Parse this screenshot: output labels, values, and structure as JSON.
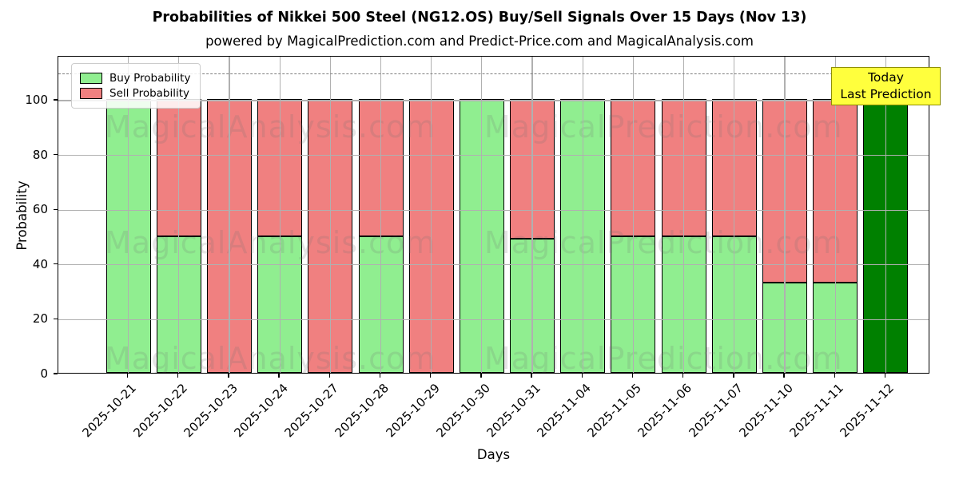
{
  "title": "Probabilities of Nikkei 500 Steel (NG12.OS) Buy/Sell Signals Over 15 Days (Nov 13)",
  "subtitle": "powered by MagicalPrediction.com and Predict-Price.com and MagicalAnalysis.com",
  "legend": {
    "items": [
      {
        "label": "Buy Probability",
        "color": "#90EE90"
      },
      {
        "label": "Sell Probability",
        "color": "#F08080"
      }
    ]
  },
  "annotation_box": {
    "line1": "Today",
    "line2": "Last Prediction",
    "bg": "#FFFF3D",
    "border": "#8F8F00"
  },
  "axes": {
    "xlabel": "Days",
    "ylabel": "Probability",
    "yticks": [
      "0",
      "20",
      "40",
      "60",
      "80",
      "100"
    ],
    "ylim": [
      0,
      116
    ],
    "dashed_guide_y": 110,
    "grid": true
  },
  "watermarks": {
    "left": "MagicalAnalysis.com",
    "right": "MagicalPrediction.com"
  },
  "colors": {
    "buy": "#90EE90",
    "sell": "#F08080",
    "last_bar": "#008000",
    "grid": "#B0B0B0",
    "dashed_guide": "#7F7F7F",
    "bar_edge": "#000000",
    "annotation_bg": "#FFFF3D"
  },
  "chart_data": {
    "type": "bar",
    "stacked": true,
    "title": "Probabilities of Nikkei 500 Steel (NG12.OS) Buy/Sell Signals Over 15 Days (Nov 13)",
    "xlabel": "Days",
    "ylabel": "Probability",
    "ylim": [
      0,
      116
    ],
    "grid": true,
    "legend_position": "upper left",
    "categories": [
      "2025-10-21",
      "2025-10-22",
      "2025-10-23",
      "2025-10-24",
      "2025-10-27",
      "2025-10-28",
      "2025-10-29",
      "2025-10-30",
      "2025-10-31",
      "2025-11-04",
      "2025-11-05",
      "2025-11-06",
      "2025-11-07",
      "2025-11-10",
      "2025-11-11",
      "2025-11-12"
    ],
    "series": [
      {
        "name": "Buy Probability",
        "color": "#90EE90",
        "values": [
          100,
          50,
          0,
          50,
          0,
          50,
          0,
          100,
          49,
          100,
          50,
          50,
          50,
          33,
          33,
          100
        ]
      },
      {
        "name": "Sell Probability",
        "color": "#F08080",
        "values": [
          0,
          50,
          100,
          50,
          100,
          50,
          100,
          0,
          51,
          0,
          50,
          50,
          50,
          67,
          67,
          0
        ]
      }
    ],
    "special_bars": [
      {
        "index": 15,
        "color": "#008000",
        "reason": "Today / Last Prediction"
      }
    ],
    "dashed_guide_y": 110
  }
}
